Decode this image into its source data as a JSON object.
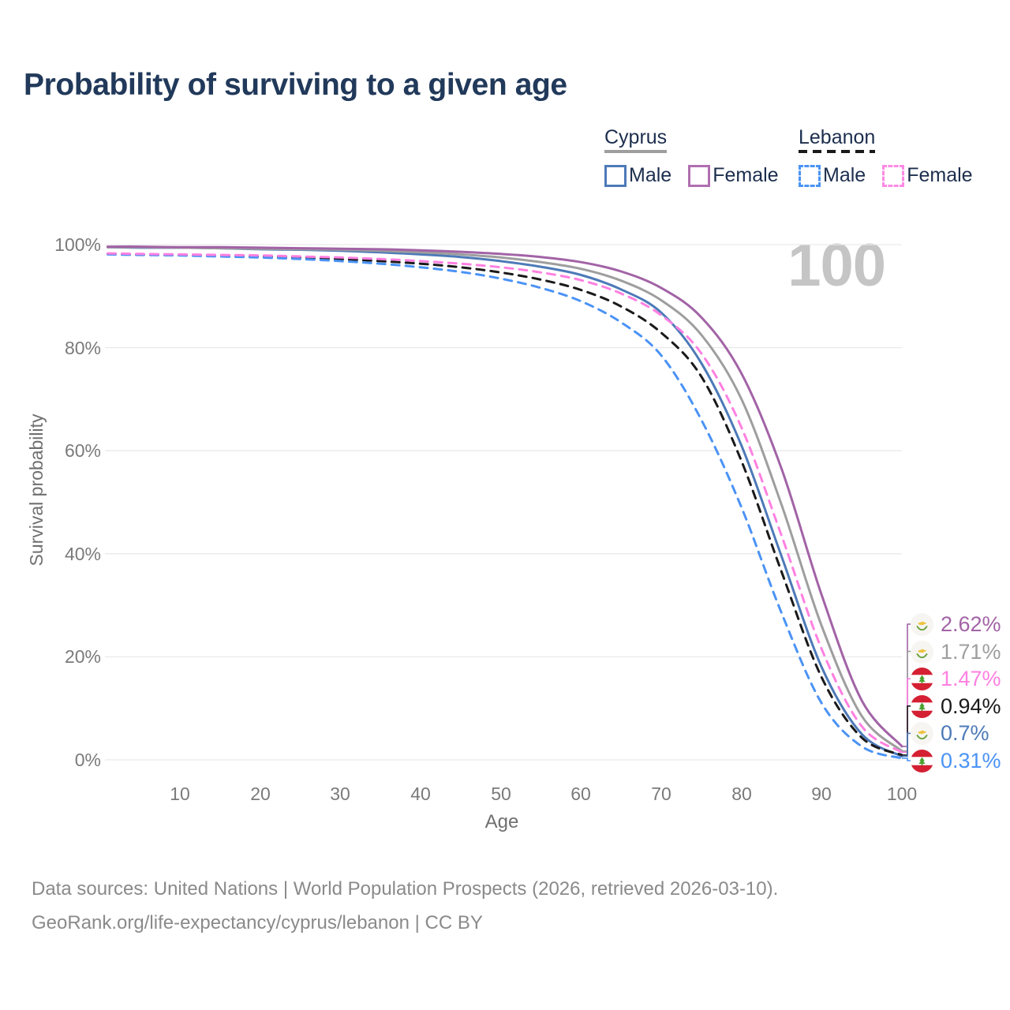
{
  "title": "Probability of surviving to a given age",
  "watermark_age": "100",
  "legend": {
    "groups": [
      {
        "name": "Cyprus",
        "line": {
          "color": "#9e9e9e",
          "dashed": false
        },
        "items": [
          {
            "label": "Male",
            "color": "#4d7ab8",
            "dashed": false
          },
          {
            "label": "Female",
            "color": "#b06fb0",
            "dashed": false
          }
        ]
      },
      {
        "name": "Lebanon",
        "line": {
          "color": "#1a1a1a",
          "dashed": true
        },
        "items": [
          {
            "label": "Male",
            "color": "#4b93f5",
            "dashed": true
          },
          {
            "label": "Female",
            "color": "#ff8ae4",
            "dashed": true
          }
        ]
      }
    ]
  },
  "chart_data": {
    "type": "line",
    "title": "Probability of surviving to a given age",
    "xlabel": "Age",
    "ylabel": "Survival probability",
    "xlim": [
      0,
      100
    ],
    "ylim": [
      0,
      100
    ],
    "grid": "horizontal-only",
    "x_ticks": [
      10,
      20,
      30,
      40,
      50,
      60,
      70,
      80,
      90,
      100
    ],
    "y_ticks": [
      100,
      80,
      60,
      40,
      20,
      0
    ],
    "y_tick_labels": [
      "100%",
      "80%",
      "60%",
      "40%",
      "20%",
      "0%"
    ],
    "ages": [
      1,
      5,
      10,
      15,
      20,
      25,
      30,
      35,
      40,
      45,
      50,
      55,
      60,
      65,
      70,
      75,
      80,
      85,
      90,
      95,
      100
    ],
    "series": [
      {
        "name": "Cyprus Female",
        "flag": "cyprus",
        "color": "#a263a6",
        "dashed": false,
        "end_label": "2.62%",
        "values": [
          99.6,
          99.6,
          99.5,
          99.5,
          99.4,
          99.3,
          99.2,
          99.1,
          98.9,
          98.6,
          98.2,
          97.6,
          96.6,
          94.8,
          91.6,
          85.9,
          75.0,
          56.5,
          32.0,
          11.5,
          2.62
        ]
      },
      {
        "name": "Cyprus",
        "flag": "cyprus",
        "color": "#9e9e9e",
        "dashed": false,
        "end_label": "1.71%",
        "values": [
          99.5,
          99.5,
          99.4,
          99.3,
          99.2,
          99.1,
          99.0,
          98.8,
          98.5,
          98.1,
          97.5,
          96.6,
          95.3,
          93.0,
          89.2,
          82.5,
          70.0,
          49.5,
          26.0,
          8.5,
          1.71
        ]
      },
      {
        "name": "Lebanon Female",
        "flag": "lebanon",
        "color": "#ff80e1",
        "dashed": true,
        "end_label": "1.47%",
        "values": [
          98.3,
          98.2,
          98.1,
          98.0,
          97.9,
          97.7,
          97.5,
          97.2,
          96.8,
          96.3,
          95.6,
          94.6,
          93.1,
          90.5,
          86.3,
          78.9,
          64.5,
          43.5,
          21.5,
          6.5,
          1.47
        ]
      },
      {
        "name": "Lebanon",
        "flag": "lebanon",
        "color": "#1a1a1a",
        "dashed": true,
        "end_label": "0.94%",
        "values": [
          98.2,
          98.1,
          98.0,
          97.9,
          97.7,
          97.5,
          97.2,
          96.8,
          96.3,
          95.6,
          94.6,
          93.2,
          91.2,
          88.0,
          82.9,
          74.4,
          58.0,
          36.5,
          16.0,
          4.3,
          0.94
        ]
      },
      {
        "name": "Cyprus Male",
        "flag": "cyprus",
        "color": "#4d7ab8",
        "dashed": false,
        "end_label": "0.7%",
        "values": [
          99.5,
          99.4,
          99.4,
          99.3,
          99.1,
          99.0,
          98.8,
          98.5,
          98.1,
          97.6,
          96.8,
          95.7,
          94.1,
          91.3,
          86.8,
          77.0,
          61.0,
          39.5,
          18.0,
          5.0,
          0.7
        ]
      },
      {
        "name": "Lebanon Male",
        "flag": "lebanon",
        "color": "#4b93f5",
        "dashed": true,
        "end_label": "0.31%",
        "values": [
          98.1,
          98.0,
          97.9,
          97.7,
          97.5,
          97.2,
          96.8,
          96.3,
          95.6,
          94.7,
          93.4,
          91.6,
          89.0,
          84.9,
          78.5,
          66.0,
          49.0,
          28.5,
          11.0,
          2.6,
          0.31
        ]
      }
    ]
  },
  "footer": {
    "line1": "Data sources: United Nations | World Population Prospects (2026, retrieved 2026-03-10).",
    "line2": "GeoRank.org/life-expectancy/cyprus/lebanon | CC BY"
  }
}
